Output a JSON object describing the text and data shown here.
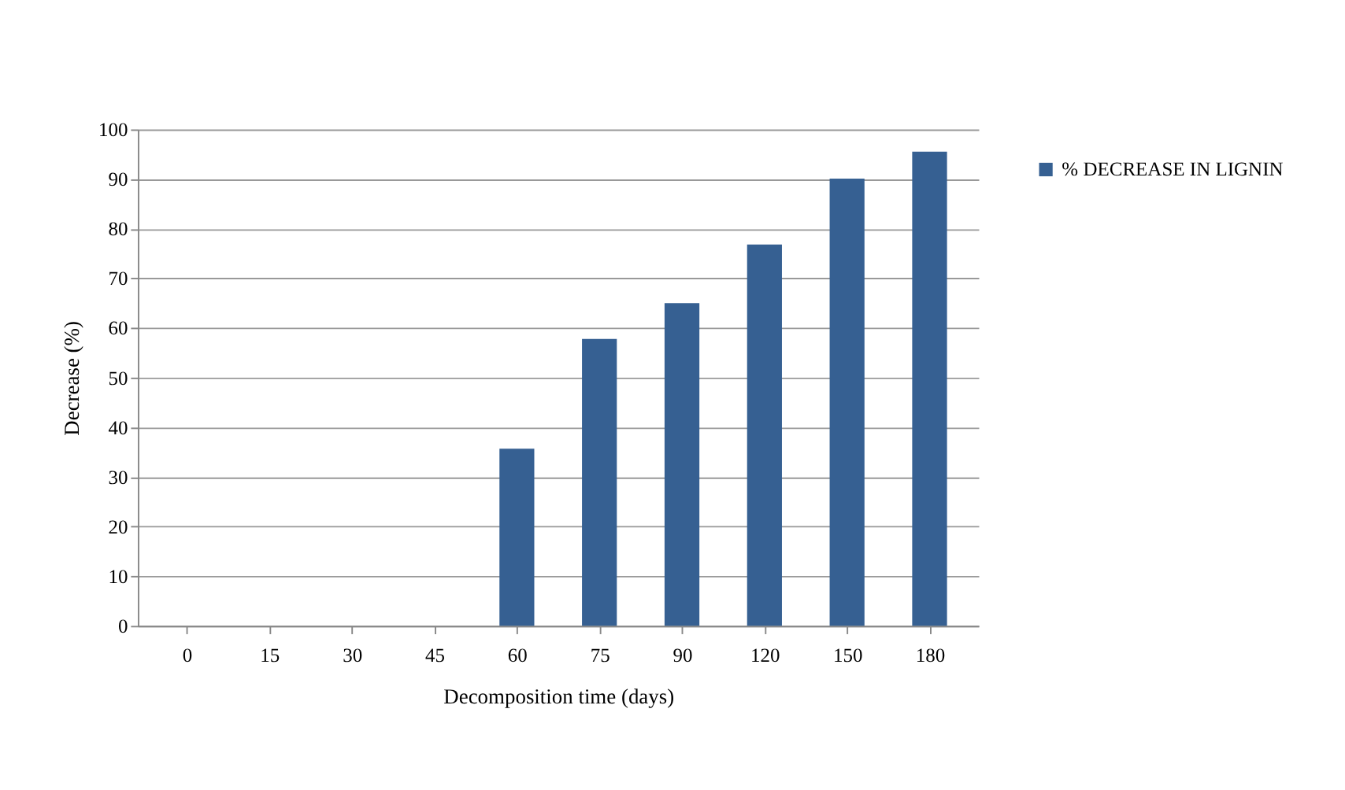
{
  "chart_data": {
    "type": "bar",
    "xlabel": "Decomposition time  (days)",
    "ylabel": "Decrease (%)",
    "categories": [
      "0",
      "15",
      "30",
      "45",
      "60",
      "75",
      "90",
      "120",
      "150",
      "180"
    ],
    "series": [
      {
        "name": "% DECREASE IN LIGNIN",
        "color": "#366092",
        "values": [
          0,
          0,
          0,
          0,
          35.7,
          57.8,
          65.0,
          76.8,
          90.1,
          95.5
        ]
      }
    ],
    "ylim": [
      0,
      100
    ],
    "yticks": [
      0,
      10,
      20,
      30,
      40,
      50,
      60,
      70,
      80,
      90,
      100
    ],
    "grid": "y",
    "legend": "right"
  }
}
